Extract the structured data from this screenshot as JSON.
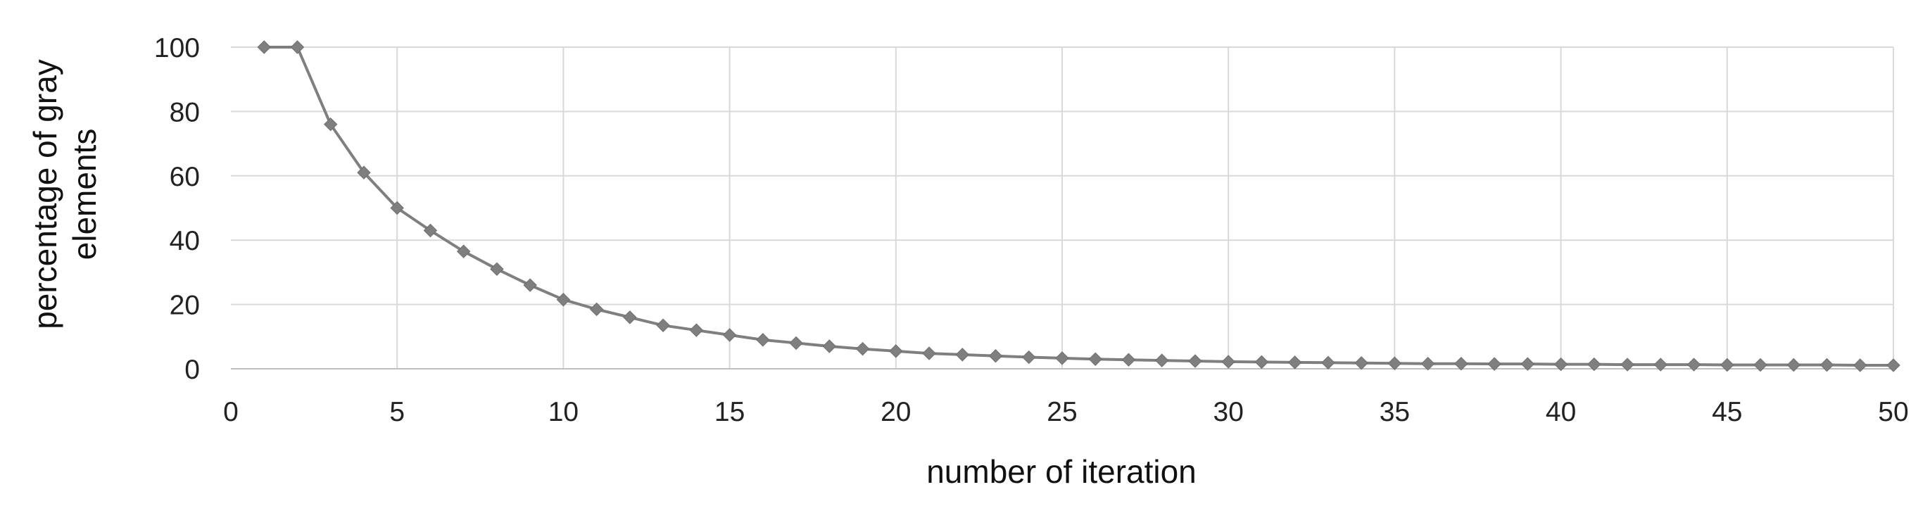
{
  "chart_data": {
    "type": "line",
    "title": "",
    "xlabel": "number of iteration",
    "ylabel": [
      "percentage of gray",
      "elements"
    ],
    "xlim": [
      0,
      50
    ],
    "ylim": [
      0,
      100
    ],
    "x_ticks": [
      0,
      5,
      10,
      15,
      20,
      25,
      30,
      35,
      40,
      45,
      50
    ],
    "y_ticks": [
      0,
      20,
      40,
      60,
      80,
      100
    ],
    "grid": true,
    "legend": "none",
    "marker": "diamond",
    "color": "#7f7f7f",
    "series": [
      {
        "x": [
          1,
          2,
          3,
          4,
          5,
          6,
          7,
          8,
          9,
          10,
          11,
          12,
          13,
          14,
          15,
          16,
          17,
          18,
          19,
          20,
          21,
          22,
          23,
          24,
          25,
          26,
          27,
          28,
          29,
          30,
          31,
          32,
          33,
          34,
          35,
          36,
          37,
          38,
          39,
          40,
          41,
          42,
          43,
          44,
          45,
          46,
          47,
          48,
          49,
          50
        ],
        "y": [
          100,
          100,
          76,
          61,
          50,
          43,
          36.5,
          31,
          26,
          21.5,
          18.5,
          16,
          13.5,
          12,
          10.5,
          9,
          8,
          7,
          6.2,
          5.5,
          4.8,
          4.4,
          4,
          3.6,
          3.3,
          3,
          2.8,
          2.6,
          2.4,
          2.2,
          2.1,
          2,
          1.9,
          1.8,
          1.7,
          1.6,
          1.6,
          1.5,
          1.5,
          1.4,
          1.4,
          1.3,
          1.3,
          1.3,
          1.2,
          1.2,
          1.2,
          1.2,
          1.1,
          1.1
        ]
      }
    ]
  }
}
